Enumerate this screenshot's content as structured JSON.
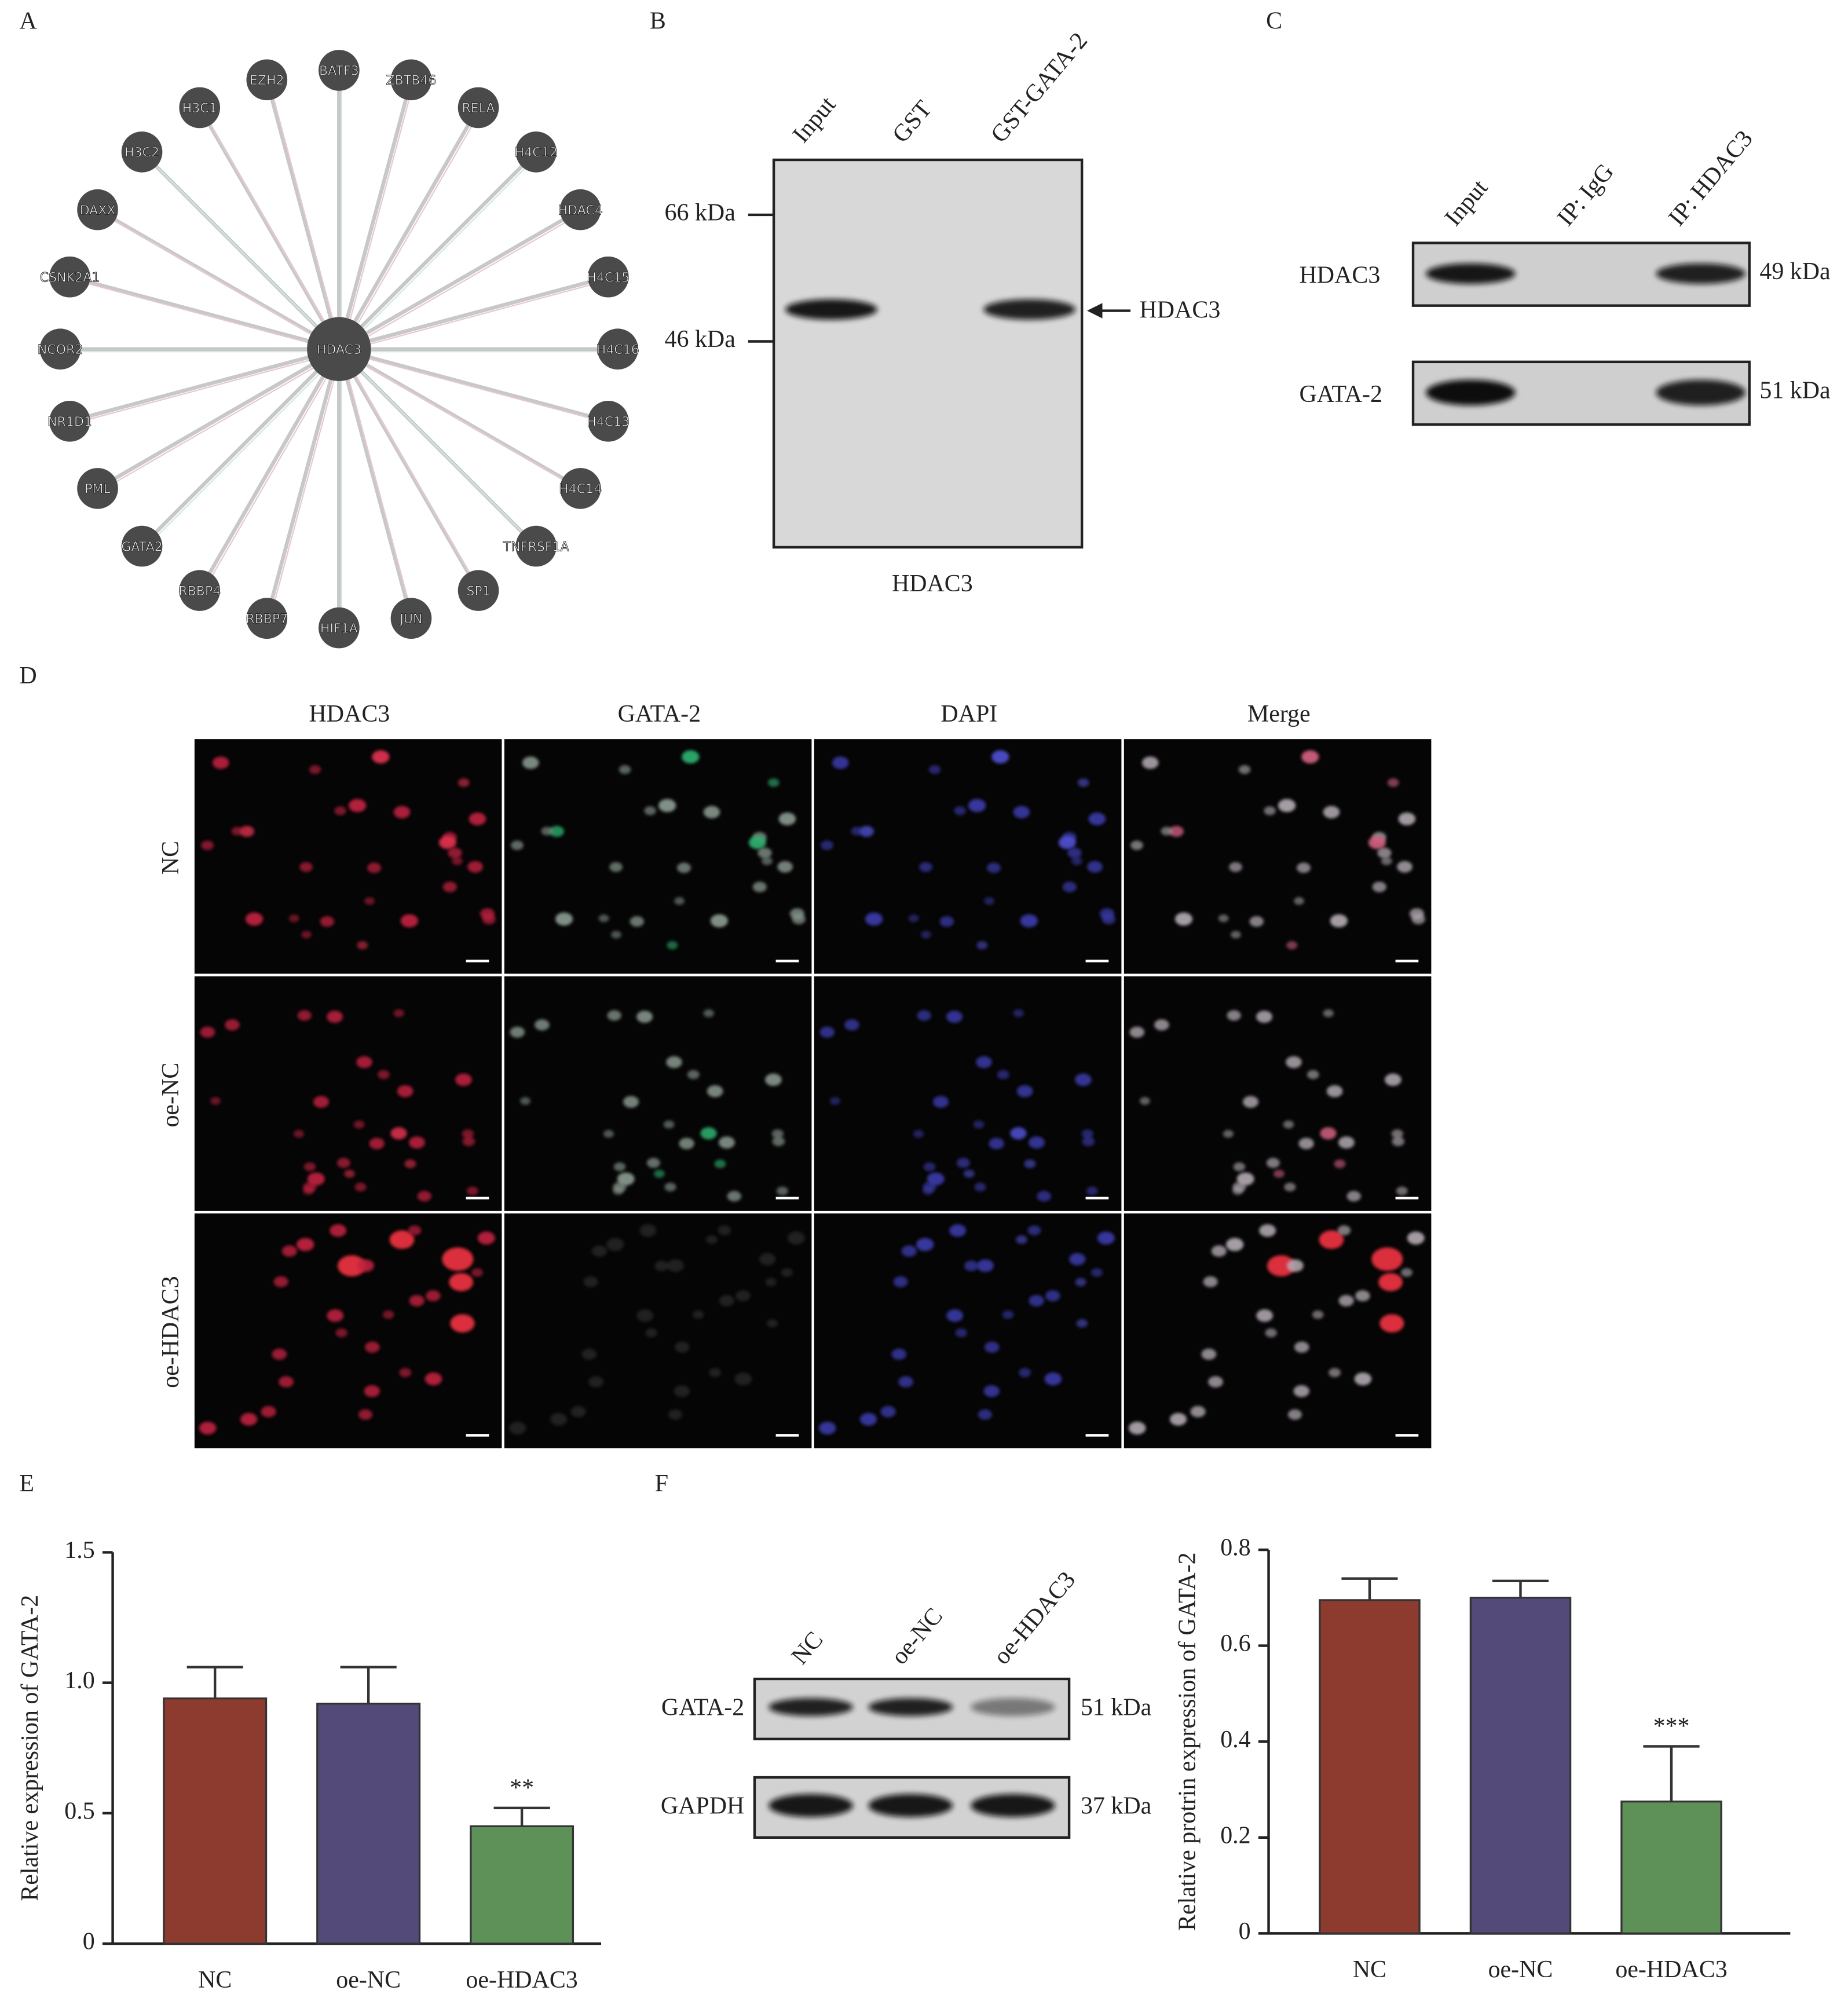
{
  "panels": {
    "A": {
      "label": "A",
      "center": "HDAC3",
      "nodes": [
        "BATF3",
        "ZBTB46",
        "RELA",
        "H4C12",
        "HDAC4",
        "H4C15",
        "H4C16",
        "H4C13",
        "H4C14",
        "TNFRSF1A",
        "SP1",
        "JUN",
        "HIF1A",
        "RBBP7",
        "RBBP4",
        "GATA2",
        "PML",
        "NR1D1",
        "NCOR2",
        "CSNK2A1",
        "DAXX",
        "H3C2",
        "H3C1",
        "EZH2"
      ]
    },
    "B": {
      "label": "B",
      "lanes": [
        "Input",
        "GST",
        "GST-GATA-2"
      ],
      "markers": [
        "66 kDa",
        "46 kDa"
      ],
      "arrow_label": "HDAC3",
      "caption": "HDAC3"
    },
    "C": {
      "label": "C",
      "lanes": [
        "Input",
        "IP: IgG",
        "IP: HDAC3"
      ],
      "rows": [
        {
          "label": "HDAC3",
          "size": "49 kDa"
        },
        {
          "label": "GATA-2",
          "size": "51 kDa"
        }
      ]
    },
    "D": {
      "label": "D",
      "columns": [
        "HDAC3",
        "GATA-2",
        "DAPI",
        "Merge"
      ],
      "rows": [
        "NC",
        "oe-NC",
        "oe-HDAC3"
      ]
    },
    "F": {
      "label": "F",
      "lanes": [
        "NC",
        "oe-NC",
        "oe-HDAC3"
      ],
      "rows": [
        {
          "label": "GATA-2",
          "size": "51 kDa"
        },
        {
          "label": "GAPDH",
          "size": "37 kDa"
        }
      ]
    }
  },
  "chart_data": [
    {
      "type": "bar",
      "label": "E",
      "ylabel": "Relative expression of GATA-2",
      "categories": [
        "NC",
        "oe-NC",
        "oe-HDAC3"
      ],
      "values": [
        0.94,
        0.92,
        0.45
      ],
      "errors": [
        0.12,
        0.14,
        0.07
      ],
      "annotations": [
        null,
        null,
        "**"
      ],
      "colors": [
        "#8e3b2f",
        "#544a7a",
        "#5e9157"
      ],
      "ylim": [
        0,
        1.5
      ],
      "yticks": [
        0,
        0.5,
        {
          "value": 1,
          "label": "1.0"
        },
        1.5
      ]
    },
    {
      "type": "bar",
      "ylabel": "Relative protrin expression of GATA-2",
      "categories": [
        "NC",
        "oe-NC",
        "oe-HDAC3"
      ],
      "values": [
        0.695,
        0.7,
        0.275
      ],
      "errors": [
        0.045,
        0.035,
        0.115
      ],
      "annotations": [
        null,
        null,
        "***"
      ],
      "colors": [
        "#8e3b2f",
        "#544a7a",
        "#5e9157"
      ],
      "ylim": [
        0,
        0.8
      ],
      "yticks": [
        0,
        0.2,
        0.4,
        0.6,
        0.8
      ]
    }
  ]
}
